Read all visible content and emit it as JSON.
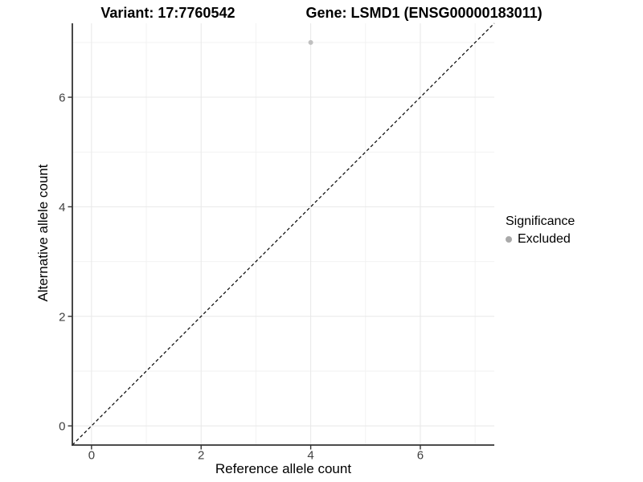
{
  "chart_data": {
    "type": "scatter",
    "title": {
      "variant": "Variant: 17:7760542",
      "gene": "Gene: LSMD1 (ENSG00000183011)"
    },
    "xlabel": "Reference allele count",
    "ylabel": "Alternative allele count",
    "x_ticks": [
      0,
      2,
      4,
      6
    ],
    "y_ticks": [
      0,
      2,
      4,
      6
    ],
    "x_minor_ticks": [
      1,
      3,
      5,
      7
    ],
    "y_minor_ticks": [
      1,
      3,
      5,
      7
    ],
    "xlim": [
      -0.35,
      7.35
    ],
    "ylim": [
      -0.35,
      7.35
    ],
    "grid": true,
    "series": [
      {
        "name": "Excluded",
        "color": "#c0c0c0",
        "points": [
          {
            "x": 4,
            "y": 7
          }
        ]
      }
    ],
    "reference_line": {
      "type": "identity",
      "slope": 1,
      "intercept": 0,
      "style": "dashed",
      "color": "#000000"
    },
    "legend": {
      "title": "Significance",
      "position": "right",
      "items": [
        {
          "label": "Excluded",
          "color": "#a9a9a9"
        }
      ]
    },
    "colors": {
      "grid_major": "#e8e8e8",
      "grid_minor": "#f2f2f2",
      "axis_line": "#333333",
      "tick_mark": "#333333",
      "tick_label": "#404040",
      "background": "#ffffff"
    }
  }
}
